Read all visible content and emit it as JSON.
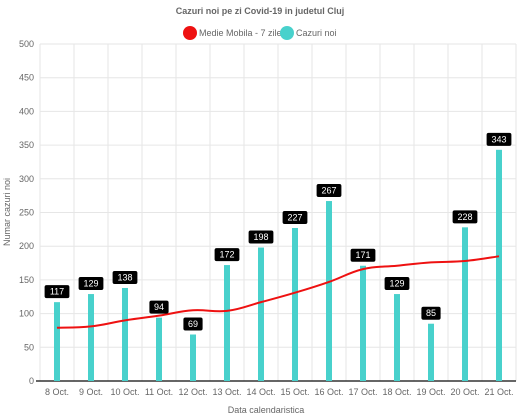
{
  "chart_data": {
    "type": "bar",
    "title": "Cazuri noi pe zi Covid-19 in judetul Cluj",
    "xlabel": "Data calendaristica",
    "ylabel": "Numar cazuri noi",
    "ylim": [
      0,
      500
    ],
    "yticks": [
      "0",
      "50",
      "100",
      "150",
      "200",
      "250",
      "300",
      "350",
      "400",
      "450",
      "500"
    ],
    "grid": true,
    "legend_position": "top",
    "categories": [
      "8 Oct.",
      "9 Oct.",
      "10 Oct.",
      "11 Oct.",
      "12 Oct.",
      "13 Oct.",
      "14 Oct.",
      "15 Oct.",
      "16 Oct.",
      "17 Oct.",
      "18 Oct.",
      "19 Oct.",
      "20 Oct.",
      "21 Oct."
    ],
    "series": [
      {
        "name": "Medie Mobila - 7 zile",
        "type": "line",
        "color": "#ee1111",
        "values": [
          79,
          81,
          90,
          97,
          105,
          104,
          117,
          131,
          147,
          166,
          171,
          176,
          178,
          185
        ]
      },
      {
        "name": "Cazuri noi",
        "type": "bar",
        "color": "#48d1cc",
        "values": [
          117,
          129,
          138,
          94,
          69,
          172,
          198,
          227,
          267,
          171,
          129,
          85,
          228,
          343
        ],
        "labels": [
          "117",
          "129",
          "138",
          "94",
          "69",
          "172",
          "198",
          "227",
          "267",
          "171",
          "129",
          "85",
          "228",
          "343"
        ]
      }
    ]
  }
}
